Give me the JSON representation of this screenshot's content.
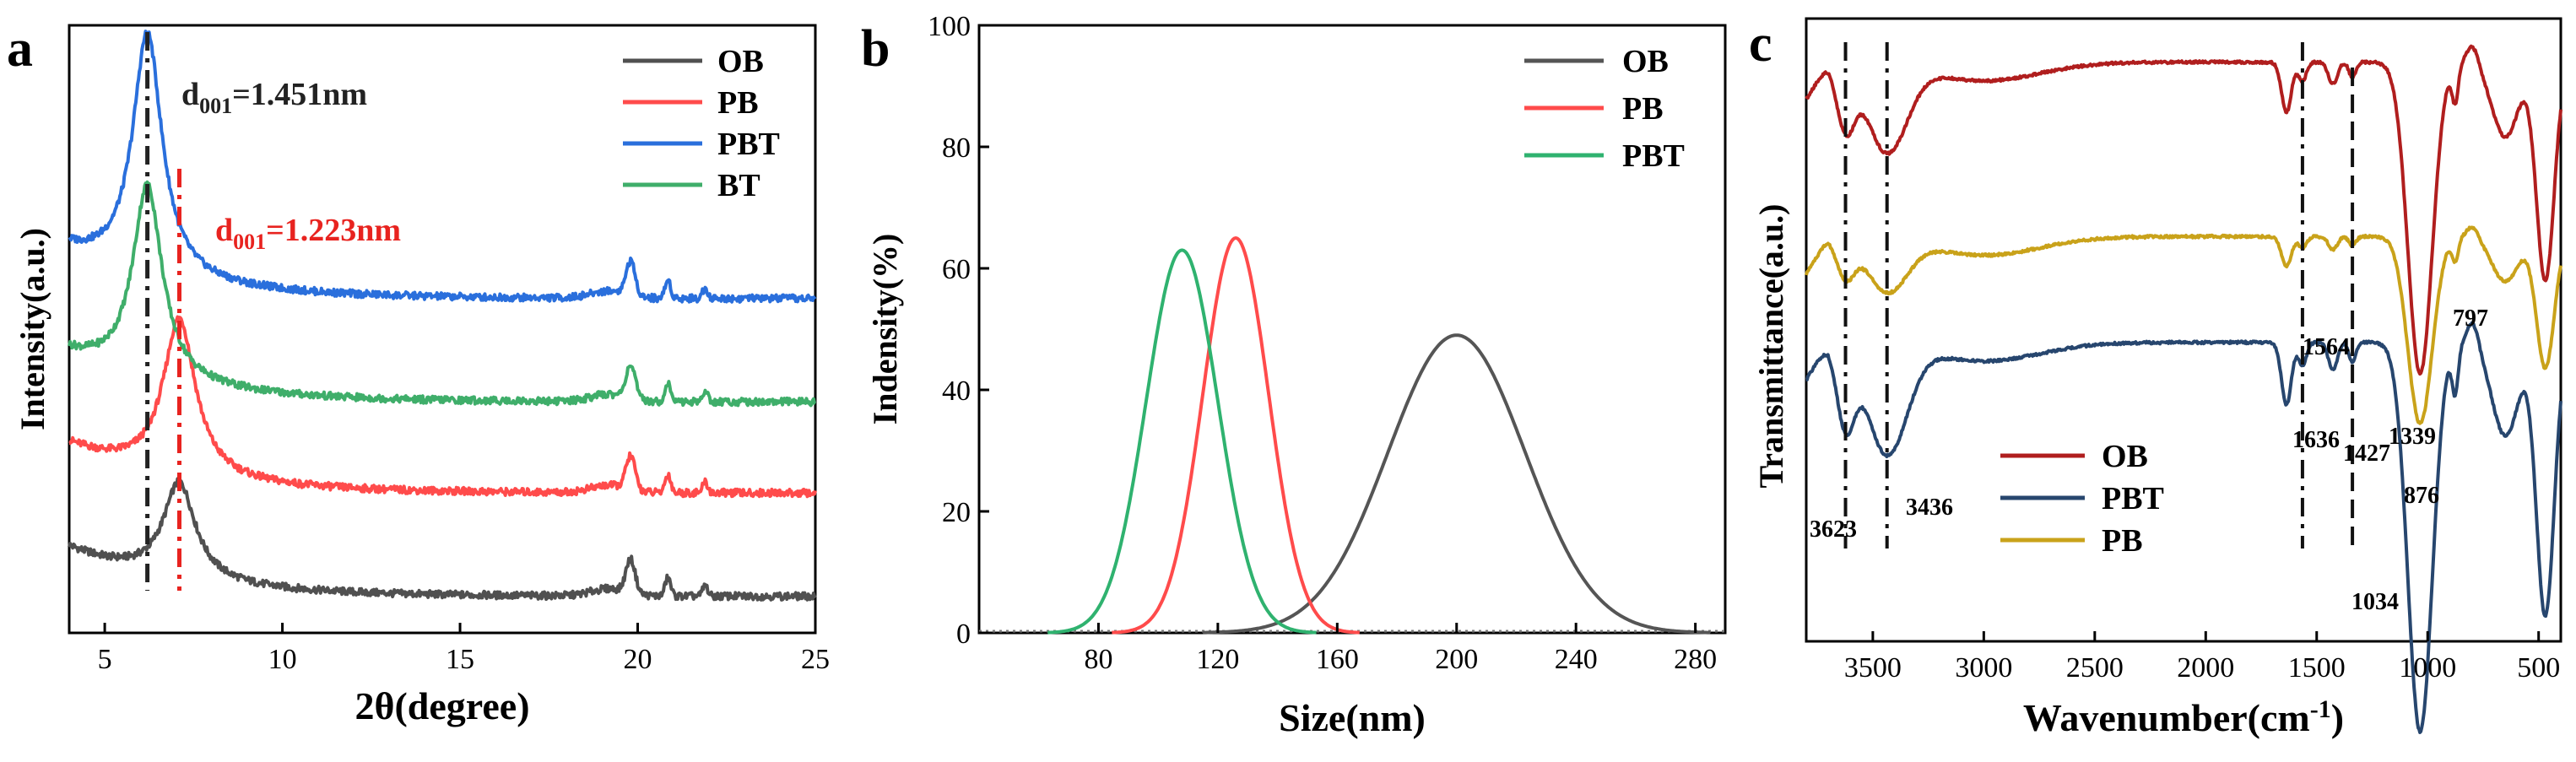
{
  "chart_data": [
    {
      "id": "a",
      "type": "line",
      "panel_label": "a",
      "xlabel": "2θ(degree)",
      "ylabel": "Intensity(a.u.)",
      "xlim": [
        4,
        25
      ],
      "xticks": [
        5,
        10,
        15,
        20,
        25
      ],
      "legend": "top-right",
      "series": [
        {
          "name": "OB",
          "color": "#505050",
          "offset": 0.06,
          "peak": 7.1,
          "peak_h": 0.16,
          "width": 0.55
        },
        {
          "name": "PB",
          "color": "#ff4b4b",
          "offset": 0.23,
          "peak": 7.1,
          "peak_h": 0.26,
          "width": 0.55
        },
        {
          "name": "PBT",
          "color": "#2a6fdc",
          "offset": 0.55,
          "peak": 6.2,
          "peak_h": 0.4,
          "width": 0.5
        },
        {
          "name": "BT",
          "color": "#3fae6a",
          "offset": 0.38,
          "peak": 6.2,
          "peak_h": 0.32,
          "width": 0.5
        }
      ],
      "minor_peaks": [
        19.8,
        20.85,
        21.9
      ],
      "annotations": [
        {
          "label": "d",
          "sub": "001",
          "value": "=1.451nm",
          "color": "#222222",
          "x": 6.2
        },
        {
          "label": "d",
          "sub": "001",
          "value": "=1.223nm",
          "color": "#e8231f",
          "x": 7.1
        }
      ]
    },
    {
      "id": "b",
      "type": "line",
      "panel_label": "b",
      "xlabel": "Size(nm)",
      "ylabel": "Indensity(%)",
      "xlim": [
        40,
        290
      ],
      "ylim": [
        0,
        100
      ],
      "xticks": [
        80,
        120,
        160,
        200,
        240,
        280
      ],
      "yticks": [
        0,
        20,
        40,
        60,
        80,
        100
      ],
      "legend": "top-right",
      "series": [
        {
          "name": "OB",
          "color": "#555555",
          "center": 200,
          "peak": 49,
          "sigma": 23
        },
        {
          "name": "PB",
          "color": "#ff4b4b",
          "center": 126,
          "peak": 65,
          "sigma": 11
        },
        {
          "name": "PBT",
          "color": "#2fb26f",
          "center": 108,
          "peak": 63,
          "sigma": 12
        }
      ]
    },
    {
      "id": "c",
      "type": "line",
      "panel_label": "c",
      "xlabel": "Wavenumber(cm",
      "xlabel_sup": "-1",
      "xlabel_end": ")",
      "ylabel": "Transmittance(a.u.)",
      "xlim": [
        3800,
        400
      ],
      "xticks": [
        3500,
        3000,
        2500,
        2000,
        1500,
        1000,
        500
      ],
      "legend": "bottom-left",
      "series": [
        {
          "name": "OB",
          "color": "#b01e1e",
          "offset": 0.05
        },
        {
          "name": "PBT",
          "color": "#27466e",
          "offset": 0.5
        },
        {
          "name": "PB",
          "color": "#c9a21a",
          "offset": 0.33
        }
      ],
      "peak_labels": [
        "3623",
        "3436",
        "1636",
        "1564",
        "1427",
        "1339",
        "1034",
        "876",
        "797"
      ]
    }
  ]
}
